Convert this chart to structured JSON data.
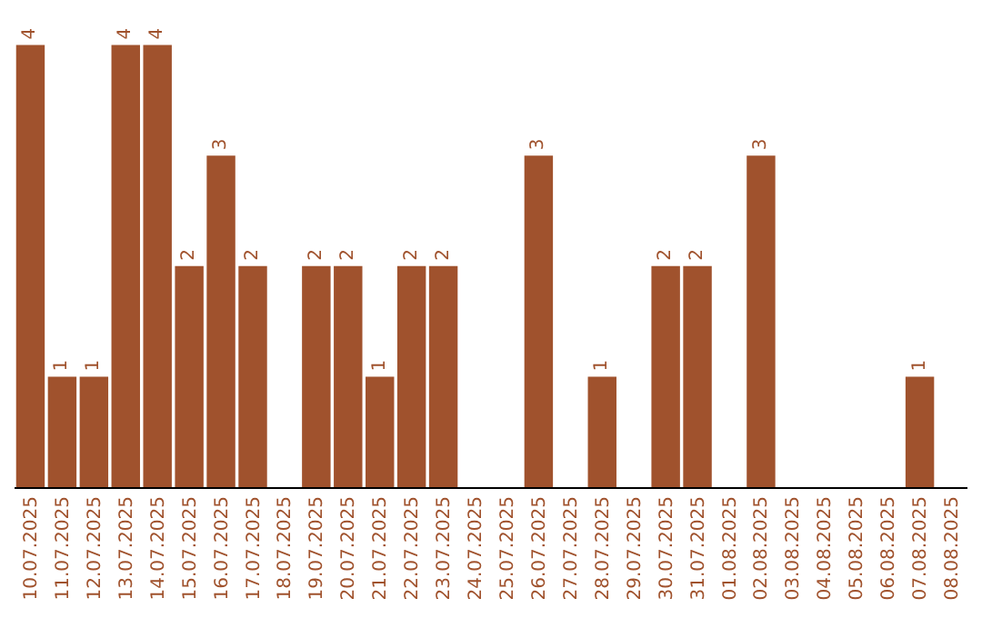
{
  "chart_data": {
    "type": "bar",
    "categories": [
      "10.07.2025",
      "11.07.2025",
      "12.07.2025",
      "13.07.2025",
      "14.07.2025",
      "15.07.2025",
      "16.07.2025",
      "17.07.2025",
      "18.07.2025",
      "19.07.2025",
      "20.07.2025",
      "21.07.2025",
      "22.07.2025",
      "23.07.2025",
      "24.07.2025",
      "25.07.2025",
      "26.07.2025",
      "27.07.2025",
      "28.07.2025",
      "29.07.2025",
      "30.07.2025",
      "31.07.2025",
      "01.08.2025",
      "02.08.2025",
      "03.08.2025",
      "04.08.2025",
      "05.08.2025",
      "06.08.2025",
      "07.08.2025",
      "08.08.2025"
    ],
    "values": [
      4,
      1,
      1,
      4,
      4,
      2,
      3,
      2,
      0,
      2,
      2,
      1,
      2,
      2,
      0,
      0,
      3,
      0,
      1,
      0,
      2,
      2,
      0,
      3,
      0,
      0,
      0,
      0,
      1,
      0
    ],
    "value_labels": [
      "4",
      "1",
      "1",
      "4",
      "4",
      "2",
      "3",
      "2",
      null,
      "2",
      "2",
      "1",
      "2",
      "2",
      null,
      null,
      "3",
      null,
      "1",
      null,
      "2",
      "2",
      null,
      "3",
      null,
      null,
      null,
      null,
      "1",
      null
    ],
    "color": "#a0522d"
  }
}
